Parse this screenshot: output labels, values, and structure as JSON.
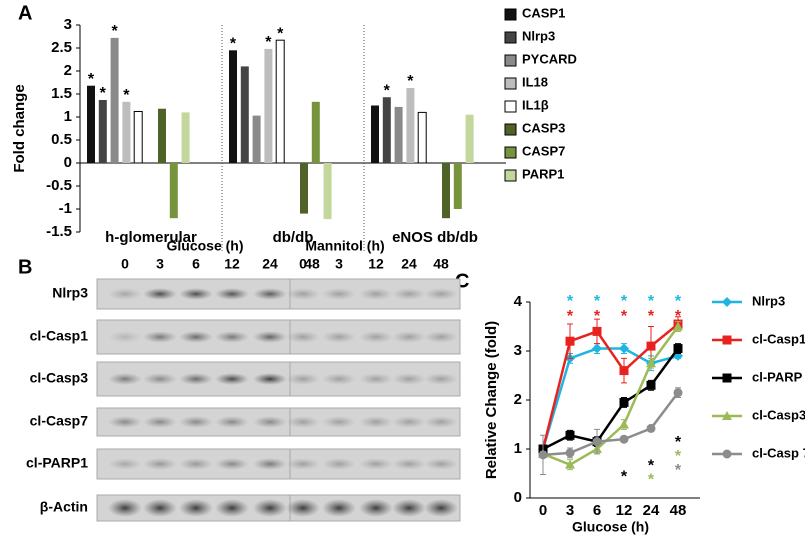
{
  "panels": [
    "A",
    "B",
    "C"
  ],
  "chart_data": [
    {
      "type": "bar",
      "y_label": "Fold change",
      "categories": [
        "h-glomerular",
        "db/db",
        "eNOS db/db"
      ],
      "ylim": [
        -1.5,
        3
      ],
      "yticks": [
        -1.5,
        -1,
        -0.5,
        0,
        0.5,
        1,
        1.5,
        2,
        2.5,
        3
      ],
      "legend": "right",
      "category_separators": true,
      "series": [
        {
          "name": "CASP1",
          "color": "#111111",
          "values": [
            1.68,
            2.45,
            1.25
          ],
          "significance": [
            "*",
            "*",
            null
          ]
        },
        {
          "name": "Nlrp3",
          "color": "#444444",
          "values": [
            1.37,
            2.1,
            1.43
          ],
          "significance": [
            "*",
            null,
            "*"
          ]
        },
        {
          "name": "PYCARD",
          "color": "#8a8a8a",
          "values": [
            2.72,
            1.03,
            1.22
          ],
          "significance": [
            "*",
            null,
            null
          ]
        },
        {
          "name": "IL18",
          "color": "#bdbdbd",
          "values": [
            1.33,
            2.48,
            1.63
          ],
          "significance": [
            "*",
            "*",
            "*"
          ]
        },
        {
          "name": "IL1β",
          "color": "#ffffff",
          "values": [
            1.12,
            2.67,
            1.1
          ],
          "significance": [
            null,
            "*",
            null
          ]
        },
        {
          "name": "CASP3",
          "color": "#4f6228",
          "values": [
            1.18,
            -1.1,
            -1.2
          ],
          "significance": [
            null,
            null,
            null
          ]
        },
        {
          "name": "CASP7",
          "color": "#77933c",
          "values": [
            -1.2,
            1.33,
            -1.0
          ],
          "significance": [
            null,
            null,
            null
          ]
        },
        {
          "name": "PARP1",
          "color": "#c3d69b",
          "values": [
            1.1,
            -1.22,
            1.05
          ],
          "significance": [
            null,
            null,
            null
          ]
        }
      ]
    },
    {
      "type": "line",
      "y_label": "Relative Change (fold)",
      "x_label": "Glucose (h)",
      "categories": [
        "0",
        "3",
        "6",
        "12",
        "24",
        "48"
      ],
      "ylim": [
        0,
        4
      ],
      "yticks": [
        0,
        1,
        2,
        3,
        4
      ],
      "legend": "right",
      "series": [
        {
          "name": "Nlrp3",
          "color": "#1fb5e0",
          "marker": "diamond",
          "values": [
            1,
            2.85,
            3.05,
            3.05,
            2.75,
            2.9
          ],
          "errors": [
            0.05,
            0.1,
            0.1,
            0.1,
            0.15,
            0.05
          ],
          "significance": [
            null,
            "*",
            "*",
            "*",
            "*",
            "*"
          ]
        },
        {
          "name": "cl-Casp1",
          "color": "#e8231f",
          "marker": "square",
          "values": [
            1,
            3.2,
            3.4,
            2.6,
            3.1,
            3.55
          ],
          "errors": [
            0.05,
            0.35,
            0.25,
            0.25,
            0.4,
            0.15
          ],
          "significance": [
            null,
            "*",
            "*",
            "*",
            "*",
            "*"
          ]
        },
        {
          "name": "cl-PARP",
          "color": "#000000",
          "marker": "square",
          "values": [
            1,
            1.28,
            1.15,
            1.95,
            2.3,
            3.05
          ],
          "errors": [
            0.05,
            0.1,
            0.1,
            0.1,
            0.1,
            0.1
          ],
          "significance": [
            null,
            null,
            null,
            "*",
            "*",
            "*"
          ]
        },
        {
          "name": "cl-Casp3",
          "color": "#9bbb59",
          "marker": "triangle",
          "values": [
            0.9,
            0.68,
            1.0,
            1.5,
            2.75,
            3.5
          ],
          "errors": [
            0.05,
            0.1,
            0.1,
            0.1,
            0.1,
            0.1
          ],
          "significance": [
            null,
            null,
            null,
            null,
            "*",
            "*"
          ]
        },
        {
          "name": "cl-Casp 7",
          "color": "#8c8c8c",
          "marker": "circle",
          "values": [
            0.88,
            0.92,
            1.15,
            1.2,
            1.42,
            2.15
          ],
          "errors": [
            0.4,
            0.1,
            0.25,
            0.05,
            0.05,
            0.1
          ],
          "significance": [
            null,
            null,
            null,
            null,
            null,
            "*"
          ]
        }
      ]
    }
  ],
  "blot": {
    "groups": [
      {
        "title": "Glucose (h)",
        "lanes": [
          "0",
          "3",
          "6",
          "12",
          "24",
          "48"
        ]
      },
      {
        "title": "Mannitol (h)",
        "lanes": [
          "0",
          "3",
          "12",
          "24",
          "48"
        ]
      }
    ],
    "rows": [
      "Nlrp3",
      "cl-Casp1",
      "cl-Casp3",
      "cl-Casp7",
      "cl-PARP1",
      "β-Actin"
    ]
  }
}
